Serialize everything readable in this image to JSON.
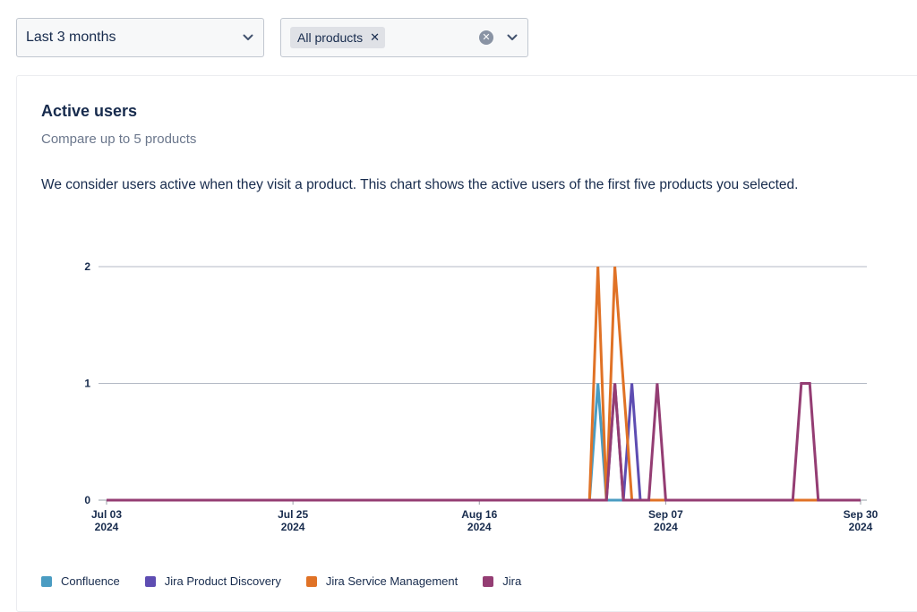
{
  "filters": {
    "period": "Last 3 months",
    "product_tag": "All products"
  },
  "card": {
    "title": "Active users",
    "subtitle": "Compare up to 5 products",
    "description": "We consider users active when they visit a product. This chart shows the active users of the first five products you selected."
  },
  "chart_data": {
    "type": "line",
    "x_ticks": [
      {
        "date": "2024-07-03",
        "line1": "Jul 03",
        "line2": "2024"
      },
      {
        "date": "2024-07-25",
        "line1": "Jul 25",
        "line2": "2024"
      },
      {
        "date": "2024-08-16",
        "line1": "Aug 16",
        "line2": "2024"
      },
      {
        "date": "2024-09-07",
        "line1": "Sep 07",
        "line2": "2024"
      },
      {
        "date": "2024-09-30",
        "line1": "Sep 30",
        "line2": "2024"
      }
    ],
    "x_range": [
      "2024-07-03",
      "2024-09-30"
    ],
    "y_ticks": [
      0,
      1,
      2
    ],
    "ylim": [
      0,
      2
    ],
    "grid": true,
    "legend_position": "bottom",
    "series": [
      {
        "name": "Confluence",
        "color": "#4a9cc2",
        "points": [
          [
            "2024-07-03",
            0
          ],
          [
            "2024-08-29",
            0
          ],
          [
            "2024-08-30",
            1
          ],
          [
            "2024-08-31",
            0
          ],
          [
            "2024-09-30",
            0
          ]
        ]
      },
      {
        "name": "Jira Product Discovery",
        "color": "#5e4db2",
        "points": [
          [
            "2024-07-03",
            0
          ],
          [
            "2024-08-31",
            0
          ],
          [
            "2024-09-01",
            1
          ],
          [
            "2024-09-02",
            0
          ],
          [
            "2024-09-03",
            1
          ],
          [
            "2024-09-04",
            0
          ],
          [
            "2024-09-30",
            0
          ]
        ]
      },
      {
        "name": "Jira Service Management",
        "color": "#e07226",
        "points": [
          [
            "2024-07-03",
            0
          ],
          [
            "2024-08-29",
            0
          ],
          [
            "2024-08-30",
            2
          ],
          [
            "2024-08-31",
            0
          ],
          [
            "2024-09-01",
            2
          ],
          [
            "2024-09-02",
            1
          ],
          [
            "2024-09-03",
            0
          ],
          [
            "2024-09-30",
            0
          ]
        ]
      },
      {
        "name": "Jira",
        "color": "#943d73",
        "points": [
          [
            "2024-07-03",
            0
          ],
          [
            "2024-08-31",
            0
          ],
          [
            "2024-09-01",
            1
          ],
          [
            "2024-09-02",
            0
          ],
          [
            "2024-09-05",
            0
          ],
          [
            "2024-09-06",
            1
          ],
          [
            "2024-09-07",
            0
          ],
          [
            "2024-09-22",
            0
          ],
          [
            "2024-09-23",
            1
          ],
          [
            "2024-09-24",
            1
          ],
          [
            "2024-09-25",
            0
          ],
          [
            "2024-09-30",
            0
          ]
        ]
      }
    ]
  }
}
